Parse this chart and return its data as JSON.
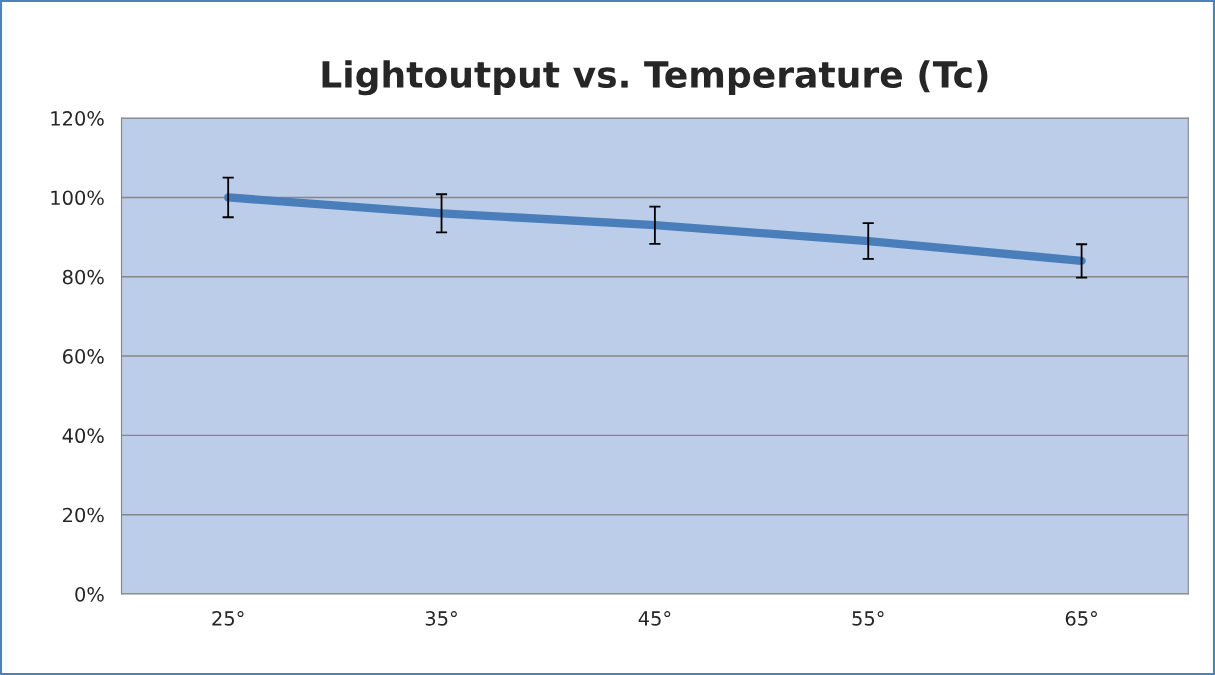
{
  "chart_data": {
    "type": "line",
    "title": "Lightoutput vs. Temperature (Tc)",
    "categories": [
      "25°",
      "35°",
      "45°",
      "55°",
      "65°"
    ],
    "series": [
      {
        "color": "#4a7ebb",
        "values": [
          100,
          96,
          93,
          89,
          84
        ],
        "errors": [
          5,
          4.8,
          4.7,
          4.5,
          4.2
        ]
      }
    ],
    "ylim": [
      0,
      120
    ],
    "yticks": [
      {
        "value": 0,
        "label": "0%"
      },
      {
        "value": 20,
        "label": "20%"
      },
      {
        "value": 40,
        "label": "40%"
      },
      {
        "value": 60,
        "label": "60%"
      },
      {
        "value": 80,
        "label": "80%"
      },
      {
        "value": 100,
        "label": "100%"
      },
      {
        "value": 120,
        "label": "120%"
      }
    ],
    "grid": "y",
    "marker": "none",
    "line_style": "solid"
  }
}
